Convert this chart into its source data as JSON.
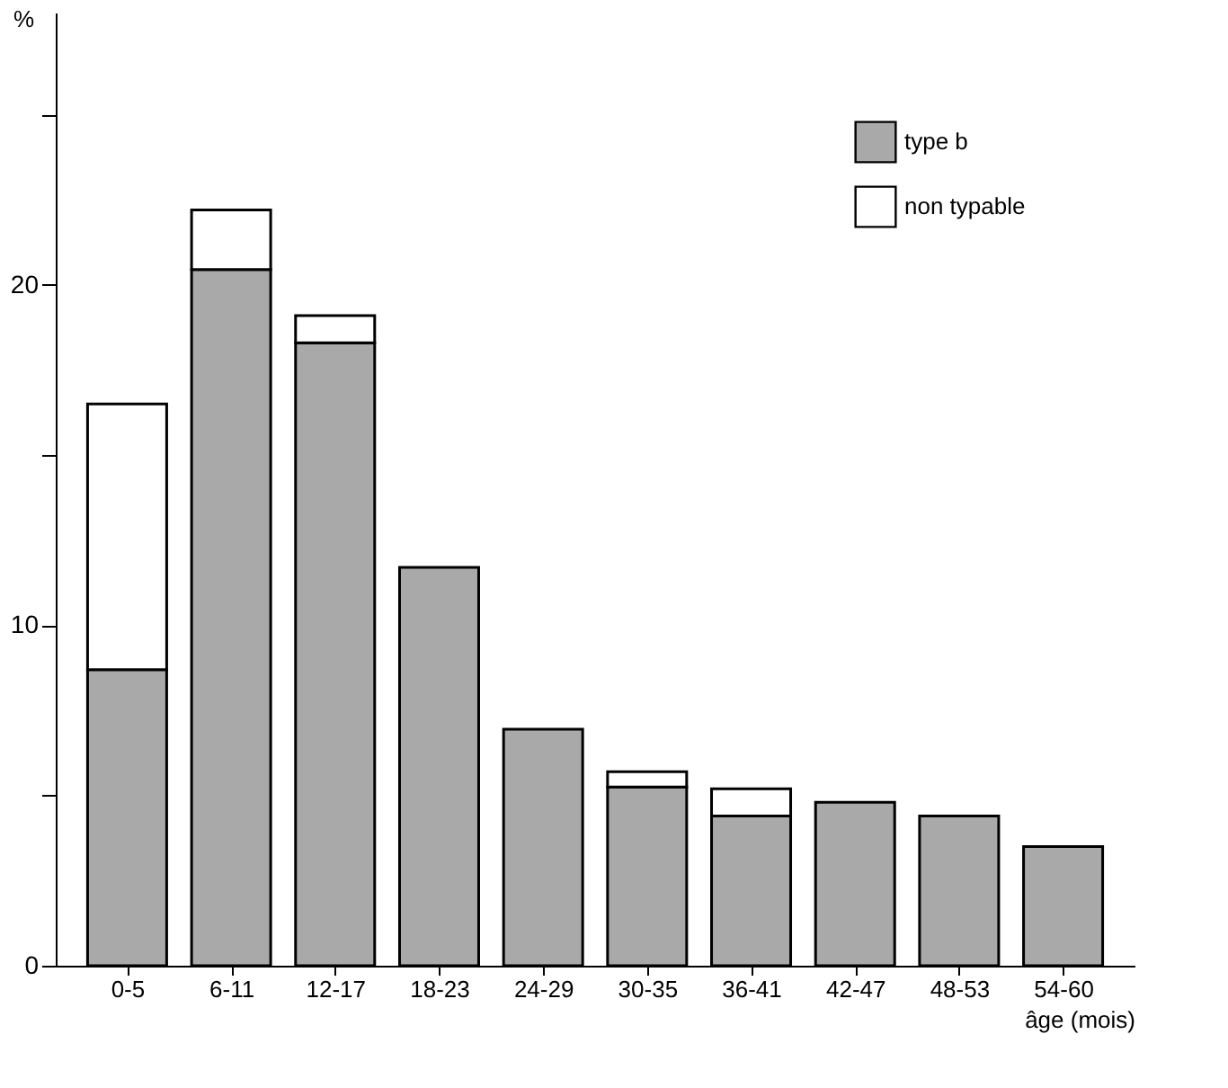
{
  "chart_data": {
    "type": "bar",
    "stacked": true,
    "xlabel": "âge (mois)",
    "ylabel": "%",
    "categories": [
      "0-5",
      "6-11",
      "12-17",
      "18-23",
      "24-29",
      "30-35",
      "36-41",
      "42-47",
      "48-53",
      "54-60"
    ],
    "series": [
      {
        "name": "type b",
        "color": "#a9a9a9",
        "values": [
          8.7,
          20.45,
          18.3,
          11.7,
          6.95,
          5.25,
          4.4,
          4.8,
          4.4,
          3.5
        ]
      },
      {
        "name": "non typable",
        "color": "#ffffff",
        "values": [
          7.8,
          1.75,
          0.8,
          0,
          0,
          0.45,
          0.8,
          0,
          0,
          0
        ]
      }
    ],
    "ylim": [
      0,
      28
    ],
    "yticks": [
      0,
      {
        "value": 5,
        "label": null
      },
      10,
      {
        "value": 15,
        "label": null
      },
      20,
      {
        "value": 25,
        "label": null
      }
    ],
    "grid": false,
    "legend": "top right"
  }
}
